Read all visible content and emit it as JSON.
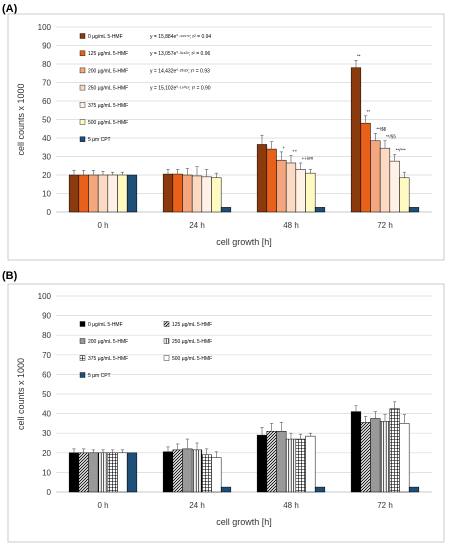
{
  "chart_data": [
    {
      "panel_label": "(A)",
      "type": "bar",
      "categories": [
        "0 h",
        "24 h",
        "48 h",
        "72 h"
      ],
      "ylim": [
        0,
        100
      ],
      "yticks": [
        0,
        10,
        20,
        30,
        40,
        50,
        60,
        70,
        80,
        90,
        100
      ],
      "ylabel": "cell counts x 1000",
      "xlabel": "cell growth [h]",
      "grid": true,
      "legend_placement": "top-left",
      "series": [
        {
          "name": "0 µg/mL 5-HMF",
          "color": "#8b3a0e",
          "pattern": "solid",
          "values": [
            20,
            20.5,
            36.5,
            78
          ],
          "errors": [
            2.5,
            2.5,
            5,
            4
          ],
          "ann": [
            "",
            "",
            "",
            "**"
          ],
          "eq": "y = 15,884e°·⁴⁶⁶⁷ˣ; r² = 0.94"
        },
        {
          "name": "125 µg/mL 5-HMF",
          "color": "#e8611a",
          "pattern": "solid",
          "values": [
            20,
            20.5,
            34,
            48
          ],
          "errors": [
            2.5,
            2.5,
            4,
            4
          ],
          "ann": [
            "",
            "",
            "",
            "**"
          ],
          "eq": "y = 13,057e°·³¹⁴²ˣ; r² = 0.96"
        },
        {
          "name": "200 µg/mL 5-HMF",
          "color": "#f4a77e",
          "pattern": "solid",
          "values": [
            20,
            20,
            28,
            38.5
          ],
          "errors": [
            2.5,
            3.5,
            4.5,
            4
          ],
          "ann": [
            "",
            "",
            "+",
            "**/$$"
          ],
          "eq": "y = 14,432e°·²³¹²ˣ; r² = 0.93"
        },
        {
          "name": "250 µg/mL 5-HMF",
          "color": "#fcd9c3",
          "pattern": "solid",
          "values": [
            20,
            19.5,
            26.5,
            34.5
          ],
          "errors": [
            2,
            5,
            4,
            4
          ],
          "ann": [
            "",
            "",
            "++",
            "**/§§"
          ],
          "eq": "y = 15,102e°·¹⁹⁰¹ˣ; r² = 0.90"
        },
        {
          "name": "375 µg/mL 5-HMF",
          "color": "#fff1e6",
          "pattern": "solid",
          "values": [
            20,
            19,
            23,
            27.5
          ],
          "errors": [
            1.5,
            4,
            3.5,
            3.5
          ],
          "ann": [
            "",
            "",
            "++/##",
            "**/***"
          ],
          "eq": ""
        },
        {
          "name": "500 µg/mL 5-HMF",
          "color": "#fff9c2",
          "pattern": "solid",
          "values": [
            20,
            18.5,
            21,
            18.5
          ],
          "errors": [
            1.5,
            2.5,
            2,
            3
          ],
          "ann": [
            "",
            "",
            "",
            ""
          ],
          "eq": ""
        },
        {
          "name": "5 µm CPT",
          "color": "#1f4e79",
          "pattern": "solid",
          "values": [
            20,
            2.5,
            2.5,
            2.5
          ],
          "errors": [
            0,
            0,
            0,
            0
          ],
          "ann": [
            "",
            "",
            "",
            ""
          ],
          "eq": ""
        }
      ]
    },
    {
      "panel_label": "(B)",
      "type": "bar",
      "categories": [
        "0 h",
        "24 h",
        "48 h",
        "72 h"
      ],
      "ylim": [
        0,
        100
      ],
      "yticks": [
        0,
        10,
        20,
        30,
        40,
        50,
        60,
        70,
        80,
        90,
        100
      ],
      "ylabel": "cell counts x 1000",
      "xlabel": "cell growth [h]",
      "grid": true,
      "legend_placement": "top-left",
      "series": [
        {
          "name": "0 µg/mL 5-HMF",
          "color": "#000000",
          "pattern": "solid",
          "values": [
            20,
            20.5,
            29,
            41
          ],
          "errors": [
            2,
            2.5,
            4,
            3
          ]
        },
        {
          "name": "125 µg/mL 5-HMF",
          "color": "#000000",
          "pattern": "diagonal",
          "values": [
            20,
            21.5,
            31,
            35.5
          ],
          "errors": [
            2,
            3,
            4,
            3
          ]
        },
        {
          "name": "200 µg/mL 5-HMF",
          "color": "#999999",
          "pattern": "solid",
          "values": [
            20,
            22,
            31,
            37.5
          ],
          "errors": [
            1.5,
            5,
            4.5,
            3.5
          ]
        },
        {
          "name": "250 µg/mL 5-HMF",
          "color": "#ffffff",
          "pattern": "vertical",
          "values": [
            20,
            21.5,
            27,
            36
          ],
          "errors": [
            1.5,
            3.5,
            3,
            3.5
          ]
        },
        {
          "name": "375 µg/mL 5-HMF",
          "color": "#ffffff",
          "pattern": "grid",
          "values": [
            20,
            19,
            27,
            42.5
          ],
          "errors": [
            1.5,
            3,
            2.5,
            3.5
          ]
        },
        {
          "name": "500 µg/mL 5-HMF",
          "color": "#ffffff",
          "pattern": "solid",
          "values": [
            20,
            17.5,
            28.5,
            35
          ],
          "errors": [
            1.5,
            3,
            1.5,
            4.5
          ]
        },
        {
          "name": "5 µm CPT",
          "color": "#1f4e79",
          "pattern": "solid",
          "values": [
            20,
            2.5,
            2.5,
            2.5
          ],
          "errors": [
            0,
            0,
            0,
            0
          ]
        }
      ]
    }
  ]
}
